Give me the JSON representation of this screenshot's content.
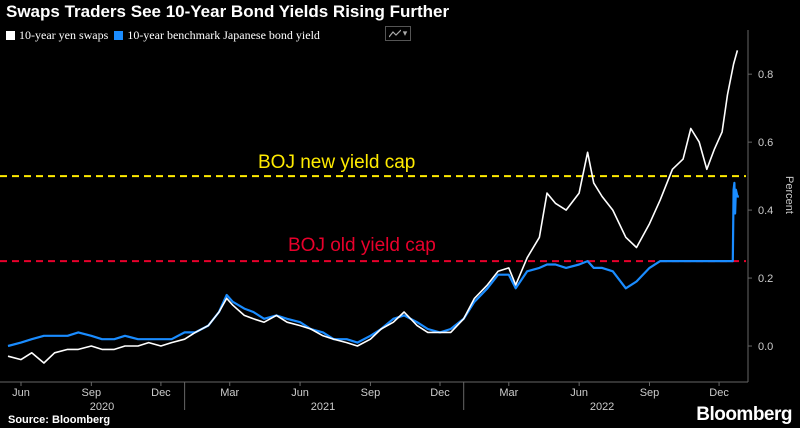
{
  "title": "Swaps Traders See 10-Year Bond Yields Rising Further",
  "legend": [
    {
      "label": "10-year yen swaps",
      "color": "#ffffff"
    },
    {
      "label": "10-year benchmark Japanese bond yield",
      "color": "#1a8cff"
    }
  ],
  "source": "Source: Bloomberg",
  "brand": "Bloomberg",
  "colors": {
    "background": "#000000",
    "axis": "#666666",
    "new_cap": "#ffeb00",
    "old_cap": "#e8002b"
  },
  "icons": {
    "chart_toggle": "line-chart-icon"
  },
  "chart_data": {
    "type": "line",
    "title": "Swaps Traders See 10-Year Bond Yields Rising Further",
    "ylabel": "Percent",
    "xlabel": "",
    "ylim": [
      -0.1,
      0.93
    ],
    "xlim": [
      "2020-05-15",
      "2022-12-31"
    ],
    "y_ticks": [
      0.0,
      0.2,
      0.4,
      0.6,
      0.8
    ],
    "y_tick_labels": [
      "0.0",
      "0.2",
      "0.4",
      "0.6",
      "0.8"
    ],
    "x_ticks": [
      {
        "date": "2020-06-01",
        "label": "Jun"
      },
      {
        "date": "2020-09-01",
        "label": "Sep"
      },
      {
        "date": "2020-12-01",
        "label": "Dec"
      },
      {
        "date": "2021-03-01",
        "label": "Mar"
      },
      {
        "date": "2021-06-01",
        "label": "Jun"
      },
      {
        "date": "2021-09-01",
        "label": "Sep"
      },
      {
        "date": "2021-12-01",
        "label": "Dec"
      },
      {
        "date": "2022-03-01",
        "label": "Mar"
      },
      {
        "date": "2022-06-01",
        "label": "Jun"
      },
      {
        "date": "2022-09-01",
        "label": "Sep"
      },
      {
        "date": "2022-12-01",
        "label": "Dec"
      }
    ],
    "x_year_labels": [
      {
        "date": "2020-09-15",
        "label": "2020"
      },
      {
        "date": "2021-07-01",
        "label": "2021"
      },
      {
        "date": "2022-07-01",
        "label": "2022"
      }
    ],
    "grid": false,
    "legend_position": "top-left",
    "annotations": [
      {
        "type": "hline",
        "y": 0.5,
        "label": "BOJ new yield cap",
        "color": "#ffeb00"
      },
      {
        "type": "hline",
        "y": 0.25,
        "label": "BOJ old yield cap",
        "color": "#e8002b"
      }
    ],
    "series": [
      {
        "name": "10-year yen swaps",
        "color": "#ffffff",
        "points": [
          [
            "2020-05-15",
            -0.03
          ],
          [
            "2020-06-01",
            -0.04
          ],
          [
            "2020-06-15",
            -0.02
          ],
          [
            "2020-07-01",
            -0.05
          ],
          [
            "2020-07-15",
            -0.02
          ],
          [
            "2020-08-01",
            -0.01
          ],
          [
            "2020-08-15",
            -0.01
          ],
          [
            "2020-09-01",
            0.0
          ],
          [
            "2020-09-15",
            -0.01
          ],
          [
            "2020-10-01",
            -0.01
          ],
          [
            "2020-10-15",
            0.0
          ],
          [
            "2020-11-01",
            0.0
          ],
          [
            "2020-11-15",
            0.01
          ],
          [
            "2020-12-01",
            0.0
          ],
          [
            "2020-12-15",
            0.01
          ],
          [
            "2021-01-01",
            0.02
          ],
          [
            "2021-01-15",
            0.04
          ],
          [
            "2021-02-01",
            0.06
          ],
          [
            "2021-02-15",
            0.1
          ],
          [
            "2021-02-25",
            0.14
          ],
          [
            "2021-03-05",
            0.12
          ],
          [
            "2021-03-20",
            0.09
          ],
          [
            "2021-04-01",
            0.08
          ],
          [
            "2021-04-15",
            0.07
          ],
          [
            "2021-05-01",
            0.09
          ],
          [
            "2021-05-15",
            0.07
          ],
          [
            "2021-06-01",
            0.06
          ],
          [
            "2021-06-15",
            0.05
          ],
          [
            "2021-07-01",
            0.03
          ],
          [
            "2021-07-15",
            0.02
          ],
          [
            "2021-08-01",
            0.01
          ],
          [
            "2021-08-15",
            0.0
          ],
          [
            "2021-09-01",
            0.02
          ],
          [
            "2021-09-15",
            0.05
          ],
          [
            "2021-10-01",
            0.07
          ],
          [
            "2021-10-15",
            0.1
          ],
          [
            "2021-11-01",
            0.06
          ],
          [
            "2021-11-15",
            0.04
          ],
          [
            "2021-12-01",
            0.04
          ],
          [
            "2021-12-15",
            0.04
          ],
          [
            "2022-01-01",
            0.08
          ],
          [
            "2022-01-15",
            0.14
          ],
          [
            "2022-02-01",
            0.18
          ],
          [
            "2022-02-15",
            0.22
          ],
          [
            "2022-03-01",
            0.23
          ],
          [
            "2022-03-10",
            0.18
          ],
          [
            "2022-03-25",
            0.26
          ],
          [
            "2022-04-10",
            0.32
          ],
          [
            "2022-04-20",
            0.45
          ],
          [
            "2022-05-01",
            0.42
          ],
          [
            "2022-05-15",
            0.4
          ],
          [
            "2022-06-01",
            0.45
          ],
          [
            "2022-06-12",
            0.57
          ],
          [
            "2022-06-20",
            0.48
          ],
          [
            "2022-07-01",
            0.44
          ],
          [
            "2022-07-15",
            0.4
          ],
          [
            "2022-08-01",
            0.32
          ],
          [
            "2022-08-15",
            0.29
          ],
          [
            "2022-09-01",
            0.36
          ],
          [
            "2022-09-15",
            0.43
          ],
          [
            "2022-10-01",
            0.52
          ],
          [
            "2022-10-15",
            0.55
          ],
          [
            "2022-10-25",
            0.64
          ],
          [
            "2022-11-05",
            0.6
          ],
          [
            "2022-11-15",
            0.52
          ],
          [
            "2022-11-25",
            0.58
          ],
          [
            "2022-12-05",
            0.63
          ],
          [
            "2022-12-12",
            0.74
          ],
          [
            "2022-12-20",
            0.83
          ],
          [
            "2022-12-25",
            0.87
          ]
        ]
      },
      {
        "name": "10-year benchmark Japanese bond yield",
        "color": "#1a8cff",
        "points": [
          [
            "2020-05-15",
            0.0
          ],
          [
            "2020-06-01",
            0.01
          ],
          [
            "2020-06-15",
            0.02
          ],
          [
            "2020-07-01",
            0.03
          ],
          [
            "2020-07-15",
            0.03
          ],
          [
            "2020-08-01",
            0.03
          ],
          [
            "2020-08-15",
            0.04
          ],
          [
            "2020-09-01",
            0.03
          ],
          [
            "2020-09-15",
            0.02
          ],
          [
            "2020-10-01",
            0.02
          ],
          [
            "2020-10-15",
            0.03
          ],
          [
            "2020-11-01",
            0.02
          ],
          [
            "2020-11-15",
            0.02
          ],
          [
            "2020-12-01",
            0.02
          ],
          [
            "2020-12-15",
            0.02
          ],
          [
            "2021-01-01",
            0.04
          ],
          [
            "2021-01-15",
            0.04
          ],
          [
            "2021-02-01",
            0.06
          ],
          [
            "2021-02-15",
            0.1
          ],
          [
            "2021-02-25",
            0.15
          ],
          [
            "2021-03-05",
            0.13
          ],
          [
            "2021-03-20",
            0.11
          ],
          [
            "2021-04-01",
            0.1
          ],
          [
            "2021-04-15",
            0.08
          ],
          [
            "2021-05-01",
            0.09
          ],
          [
            "2021-05-15",
            0.08
          ],
          [
            "2021-06-01",
            0.07
          ],
          [
            "2021-06-15",
            0.05
          ],
          [
            "2021-07-01",
            0.04
          ],
          [
            "2021-07-15",
            0.02
          ],
          [
            "2021-08-01",
            0.02
          ],
          [
            "2021-08-15",
            0.01
          ],
          [
            "2021-09-01",
            0.03
          ],
          [
            "2021-09-15",
            0.05
          ],
          [
            "2021-10-01",
            0.08
          ],
          [
            "2021-10-15",
            0.09
          ],
          [
            "2021-11-01",
            0.07
          ],
          [
            "2021-11-15",
            0.05
          ],
          [
            "2021-12-01",
            0.04
          ],
          [
            "2021-12-15",
            0.05
          ],
          [
            "2022-01-01",
            0.08
          ],
          [
            "2022-01-15",
            0.13
          ],
          [
            "2022-02-01",
            0.17
          ],
          [
            "2022-02-15",
            0.21
          ],
          [
            "2022-03-01",
            0.21
          ],
          [
            "2022-03-10",
            0.17
          ],
          [
            "2022-03-25",
            0.22
          ],
          [
            "2022-04-10",
            0.23
          ],
          [
            "2022-04-20",
            0.24
          ],
          [
            "2022-05-01",
            0.24
          ],
          [
            "2022-05-15",
            0.23
          ],
          [
            "2022-06-01",
            0.24
          ],
          [
            "2022-06-12",
            0.25
          ],
          [
            "2022-06-20",
            0.23
          ],
          [
            "2022-07-01",
            0.23
          ],
          [
            "2022-07-15",
            0.22
          ],
          [
            "2022-08-01",
            0.17
          ],
          [
            "2022-08-15",
            0.19
          ],
          [
            "2022-09-01",
            0.23
          ],
          [
            "2022-09-15",
            0.25
          ],
          [
            "2022-10-01",
            0.25
          ],
          [
            "2022-10-15",
            0.25
          ],
          [
            "2022-10-25",
            0.25
          ],
          [
            "2022-11-05",
            0.25
          ],
          [
            "2022-11-15",
            0.25
          ],
          [
            "2022-11-25",
            0.25
          ],
          [
            "2022-12-05",
            0.25
          ],
          [
            "2022-12-15",
            0.25
          ],
          [
            "2022-12-19",
            0.25
          ],
          [
            "2022-12-20",
            0.46
          ],
          [
            "2022-12-21",
            0.48
          ],
          [
            "2022-12-22",
            0.39
          ],
          [
            "2022-12-23",
            0.46
          ],
          [
            "2022-12-25",
            0.44
          ],
          [
            "2022-12-27",
            0.44
          ]
        ]
      }
    ]
  }
}
